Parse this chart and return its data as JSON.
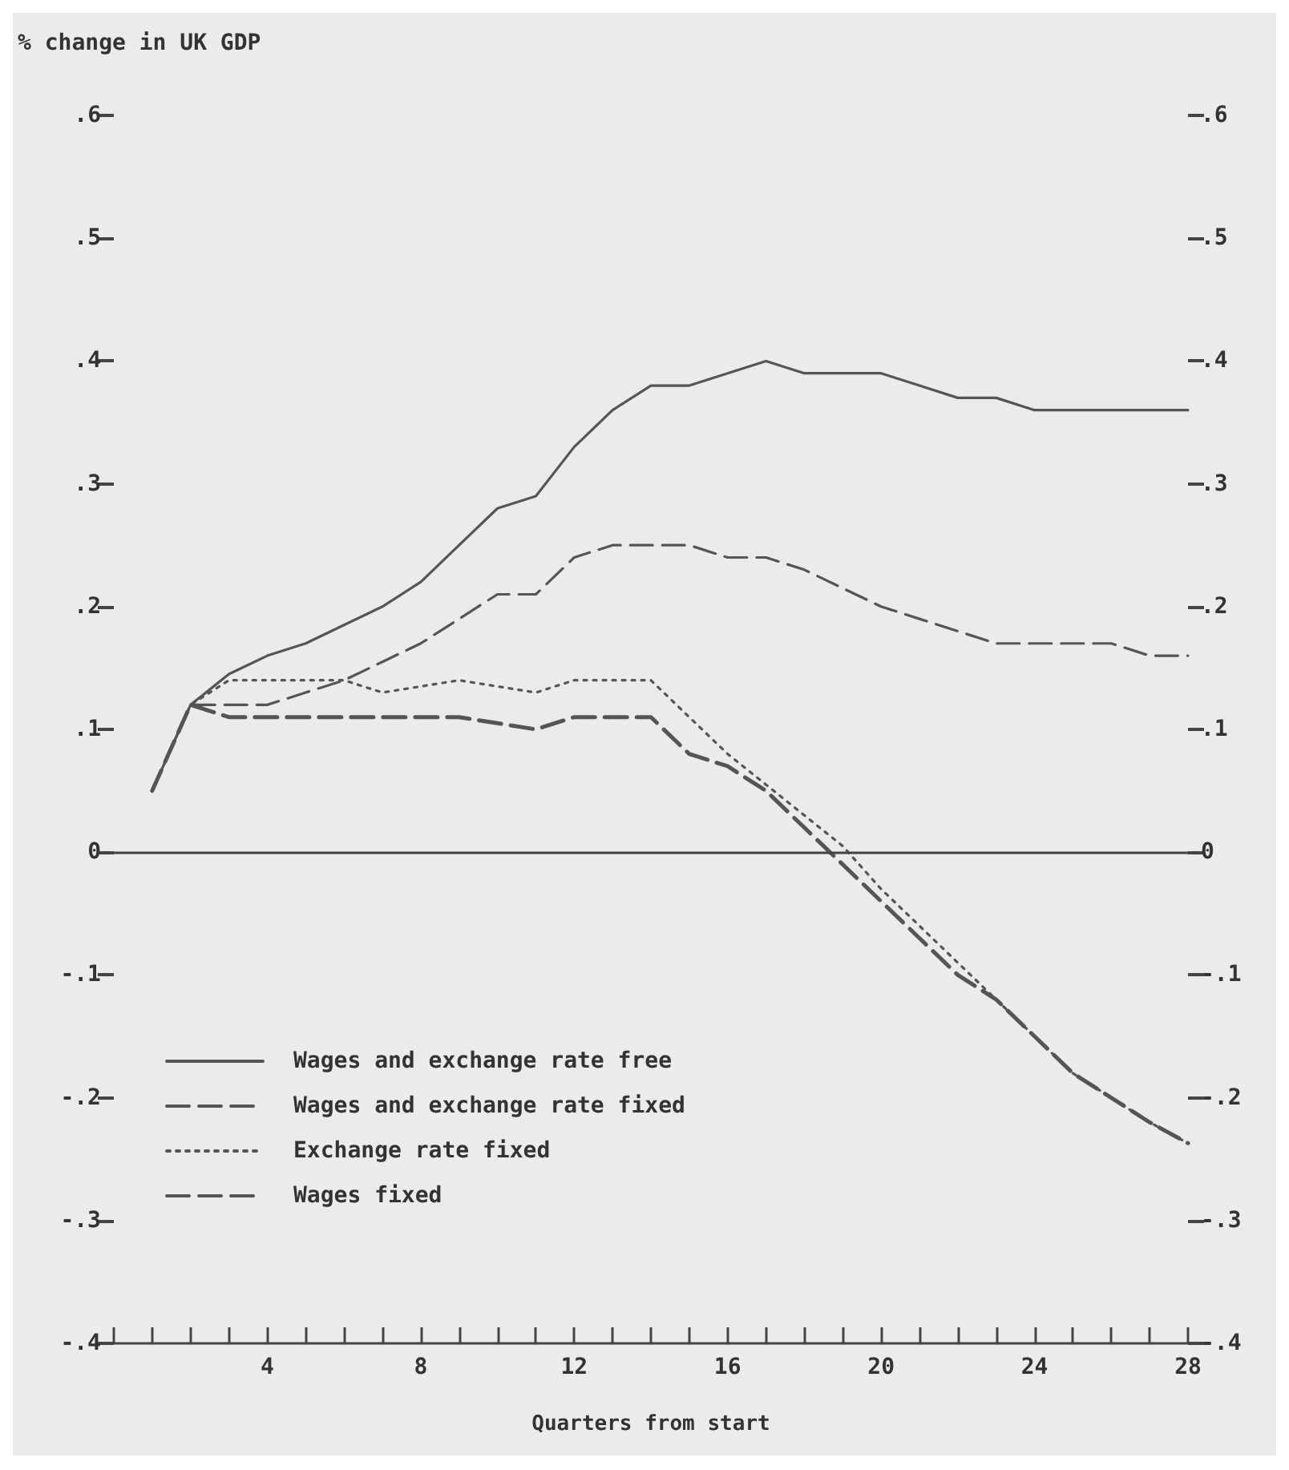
{
  "chart_data": {
    "type": "line",
    "ylabel": "% change in UK GDP",
    "xlabel": "Quarters from start",
    "x": [
      1,
      2,
      3,
      4,
      5,
      6,
      7,
      8,
      9,
      10,
      11,
      12,
      13,
      14,
      15,
      16,
      17,
      18,
      19,
      20,
      21,
      22,
      23,
      24,
      25,
      26,
      27,
      28
    ],
    "series": [
      {
        "name": "Wages and exchange rate free",
        "color": "#555555",
        "line_style": "solid",
        "values": [
          0.05,
          0.12,
          0.145,
          0.16,
          0.17,
          0.185,
          0.2,
          0.22,
          0.25,
          0.28,
          0.29,
          0.33,
          0.36,
          0.38,
          0.38,
          0.39,
          0.4,
          0.39,
          0.39,
          0.39,
          0.38,
          0.37,
          0.37,
          0.36,
          0.36,
          0.36,
          0.36,
          0.36
        ]
      },
      {
        "name": "Wages and exchange rate fixed",
        "color": "#555555",
        "line_style": "dashed",
        "values": [
          0.05,
          0.12,
          0.11,
          0.11,
          0.11,
          0.11,
          0.11,
          0.11,
          0.11,
          0.105,
          0.1,
          0.11,
          0.11,
          0.11,
          0.08,
          0.07,
          0.05,
          0.02,
          -0.01,
          -0.04,
          -0.07,
          -0.1,
          -0.12,
          -0.15,
          -0.18,
          -0.2,
          -0.22,
          -0.237
        ]
      },
      {
        "name": "Exchange rate fixed",
        "color": "#555555",
        "line_style": "dotted",
        "values": [
          0.05,
          0.12,
          0.14,
          0.14,
          0.14,
          0.14,
          0.13,
          0.135,
          0.14,
          0.135,
          0.13,
          0.14,
          0.14,
          0.14,
          0.11,
          0.08,
          0.055,
          0.03,
          0.005,
          -0.03,
          -0.06,
          -0.09,
          -0.12,
          -0.15,
          -0.18,
          -0.2,
          -0.22,
          -0.237
        ]
      },
      {
        "name": "Wages fixed",
        "color": "#555555",
        "line_style": "dashed",
        "values": [
          0.05,
          0.12,
          0.12,
          0.12,
          0.13,
          0.14,
          0.155,
          0.17,
          0.19,
          0.21,
          0.21,
          0.24,
          0.25,
          0.25,
          0.25,
          0.24,
          0.24,
          0.23,
          0.215,
          0.2,
          0.19,
          0.18,
          0.17,
          0.17,
          0.17,
          0.17,
          0.16,
          0.16
        ]
      }
    ],
    "xlim": [
      0,
      28
    ],
    "xticks": [
      {
        "value": 0,
        "label": null
      },
      {
        "value": 1,
        "label": null
      },
      {
        "value": 2,
        "label": null
      },
      {
        "value": 3,
        "label": null
      },
      4,
      {
        "value": 5,
        "label": null
      },
      {
        "value": 6,
        "label": null
      },
      {
        "value": 7,
        "label": null
      },
      8,
      {
        "value": 9,
        "label": null
      },
      {
        "value": 10,
        "label": null
      },
      {
        "value": 11,
        "label": null
      },
      12,
      {
        "value": 13,
        "label": null
      },
      {
        "value": 14,
        "label": null
      },
      {
        "value": 15,
        "label": null
      },
      16,
      {
        "value": 17,
        "label": null
      },
      {
        "value": 18,
        "label": null
      },
      {
        "value": 19,
        "label": null
      },
      20,
      {
        "value": 21,
        "label": null
      },
      {
        "value": 22,
        "label": null
      },
      {
        "value": 23,
        "label": null
      },
      24,
      {
        "value": 25,
        "label": null
      },
      {
        "value": 26,
        "label": null
      },
      {
        "value": 27,
        "label": null
      },
      28
    ],
    "ylim": [
      -0.4,
      0.6
    ],
    "yticks": [
      {
        "value": -0.4,
        "label": "-.4"
      },
      {
        "value": -0.3,
        "label": "-.3"
      },
      {
        "value": -0.2,
        "label": "-.2"
      },
      {
        "value": -0.1,
        "label": "-.1"
      },
      0,
      {
        "value": 0.1,
        "label": ".1"
      },
      {
        "value": 0.2,
        "label": ".2"
      },
      {
        "value": 0.3,
        "label": ".3"
      },
      {
        "value": 0.4,
        "label": ".4"
      },
      {
        "value": 0.5,
        "label": ".5"
      },
      {
        "value": 0.6,
        "label": ".6"
      }
    ],
    "y2lim": [
      -0.4,
      0.6
    ],
    "y2ticks": [
      {
        "value": -0.4,
        "label": "-.4"
      },
      {
        "value": -0.3,
        "label": "-.3"
      },
      {
        "value": -0.2,
        "label": "-.2"
      },
      {
        "value": -0.1,
        "label": "-.1"
      },
      0,
      {
        "value": 0.1,
        "label": ".1"
      },
      {
        "value": 0.2,
        "label": ".2"
      },
      {
        "value": 0.3,
        "label": ".3"
      },
      {
        "value": 0.4,
        "label": ".4"
      },
      {
        "value": 0.5,
        "label": ".5"
      },
      {
        "value": 0.6,
        "label": ".6"
      }
    ],
    "ref_lines": [
      {
        "axis": "y",
        "value": 0,
        "color": "#444444",
        "line_style": "solid"
      }
    ],
    "grid": false,
    "legend": "bottom left",
    "marker": "none"
  }
}
